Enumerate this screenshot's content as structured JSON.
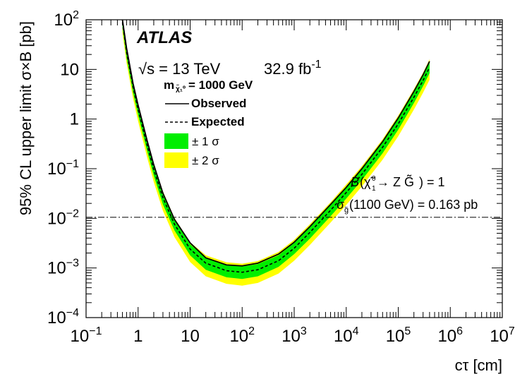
{
  "chart_data": {
    "type": "line",
    "experiment_label": "ATLAS",
    "energy_label": "√s = 13 TeV",
    "luminosity": "32.9",
    "luminosity_unit": "fb",
    "luminosity_exp": "-1",
    "mass_label_prefix": "m",
    "mass_label_value": " = 1000 GeV",
    "xlabel": "cτ [cm]",
    "ylabel": "95% CL upper limit σ×B [pb]",
    "xscale": "log",
    "yscale": "log",
    "xlim": [
      0.1,
      10000000
    ],
    "ylim": [
      0.0001,
      100
    ],
    "x_ticks": [
      {
        "v": 0.1,
        "base": "10",
        "exp": "−1"
      },
      {
        "v": 1,
        "base": "1",
        "exp": ""
      },
      {
        "v": 10,
        "base": "10",
        "exp": ""
      },
      {
        "v": 100,
        "base": "10",
        "exp": "2"
      },
      {
        "v": 1000,
        "base": "10",
        "exp": "3"
      },
      {
        "v": 10000,
        "base": "10",
        "exp": "4"
      },
      {
        "v": 100000,
        "base": "10",
        "exp": "5"
      },
      {
        "v": 1000000,
        "base": "10",
        "exp": "6"
      },
      {
        "v": 10000000,
        "base": "10",
        "exp": "7"
      }
    ],
    "y_ticks": [
      {
        "v": 0.0001,
        "base": "10",
        "exp": "−4"
      },
      {
        "v": 0.001,
        "base": "10",
        "exp": "−3"
      },
      {
        "v": 0.01,
        "base": "10",
        "exp": "−2"
      },
      {
        "v": 0.1,
        "base": "10",
        "exp": "−1"
      },
      {
        "v": 1,
        "base": "1",
        "exp": ""
      },
      {
        "v": 10,
        "base": "10",
        "exp": ""
      },
      {
        "v": 100,
        "base": "10",
        "exp": "2"
      }
    ],
    "legend": {
      "position": "top-left",
      "entries": [
        {
          "label": "Observed",
          "style": "solid"
        },
        {
          "label": "Expected",
          "style": "dashed"
        },
        {
          "label": "± 1 σ",
          "color": "#00ee00"
        },
        {
          "label": "± 2 σ",
          "color": "#ffff00"
        }
      ]
    },
    "band_colors": {
      "one_sigma": "#00ee00",
      "two_sigma": "#ffff00"
    },
    "cross_section": {
      "value": 0.0105,
      "label": "(1100 GeV) = 0.163 pb",
      "branching_label": " → Z ) = 1"
    },
    "x": [
      0.5,
      0.6,
      0.8,
      1,
      1.5,
      2,
      3,
      5,
      10,
      20,
      50,
      100,
      200,
      500,
      1000,
      2000,
      5000,
      10000,
      20000,
      50000,
      100000,
      200000,
      300000,
      400000
    ],
    "series": [
      {
        "name": "Observed",
        "style": "solid",
        "values": [
          100,
          27,
          5.2,
          1.9,
          0.36,
          0.12,
          0.032,
          0.0095,
          0.0032,
          0.0016,
          0.00115,
          0.0011,
          0.00125,
          0.0019,
          0.0033,
          0.0068,
          0.019,
          0.042,
          0.1,
          0.35,
          1.05,
          3.6,
          7.8,
          14.5
        ]
      },
      {
        "name": "Expected",
        "style": "dashed",
        "values": [
          88,
          22,
          4.4,
          1.55,
          0.29,
          0.095,
          0.026,
          0.0076,
          0.0024,
          0.00125,
          0.00088,
          0.00082,
          0.00092,
          0.0014,
          0.0025,
          0.0052,
          0.0145,
          0.033,
          0.077,
          0.27,
          0.8,
          2.75,
          6.0,
          11.0
        ]
      },
      {
        "name": "+1 sigma",
        "style": "band",
        "values": [
          100,
          27,
          5.2,
          1.9,
          0.36,
          0.118,
          0.031,
          0.0093,
          0.003,
          0.0016,
          0.00114,
          0.00107,
          0.0012,
          0.0018,
          0.0032,
          0.0066,
          0.0185,
          0.042,
          0.098,
          0.34,
          1.02,
          3.5,
          7.6,
          14.0
        ]
      },
      {
        "name": "-1 sigma",
        "style": "band",
        "values": [
          70,
          17,
          3.4,
          1.2,
          0.22,
          0.072,
          0.019,
          0.0057,
          0.0018,
          0.00092,
          0.00065,
          0.0006,
          0.00068,
          0.00105,
          0.0019,
          0.0039,
          0.011,
          0.025,
          0.059,
          0.205,
          0.61,
          2.1,
          4.6,
          8.4
        ]
      },
      {
        "name": "+2 sigma",
        "style": "band",
        "values": [
          100,
          29,
          5.8,
          2.1,
          0.4,
          0.13,
          0.035,
          0.0102,
          0.0033,
          0.0018,
          0.0013,
          0.00122,
          0.00138,
          0.0021,
          0.0037,
          0.0076,
          0.021,
          0.048,
          0.112,
          0.39,
          1.17,
          4.0,
          8.6,
          16.0
        ]
      },
      {
        "name": "-2 sigma",
        "style": "band",
        "values": [
          55,
          13.5,
          2.6,
          0.9,
          0.165,
          0.054,
          0.0142,
          0.0042,
          0.00132,
          0.00068,
          0.00048,
          0.00044,
          0.0005,
          0.00077,
          0.0014,
          0.0029,
          0.0082,
          0.0185,
          0.044,
          0.152,
          0.45,
          1.55,
          3.4,
          6.2
        ]
      }
    ]
  }
}
